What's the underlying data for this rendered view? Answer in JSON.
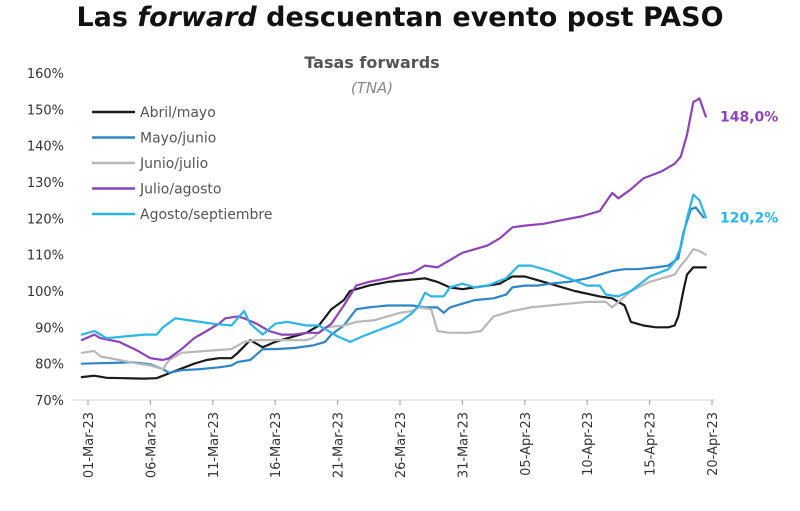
{
  "title": {
    "prefix": "Las",
    "italic": "forward",
    "suffix": "descuentan evento post PASO"
  },
  "chart_data": {
    "type": "line",
    "subtitle": "Tasas forwards",
    "unit_label": "(TNA)",
    "ylim": [
      70,
      160
    ],
    "y_ticks": [
      "70%",
      "80%",
      "90%",
      "100%",
      "110%",
      "120%",
      "130%",
      "140%",
      "150%",
      "160%"
    ],
    "y_tick_values": [
      70,
      80,
      90,
      100,
      110,
      120,
      130,
      140,
      150,
      160
    ],
    "x_ticks": [
      "01-Mar-23",
      "06-Mar-23",
      "11-Mar-23",
      "16-Mar-23",
      "21-Mar-23",
      "26-Mar-23",
      "31-Mar-23",
      "05-Apr-23",
      "10-Apr-23",
      "15-Apr-23",
      "20-Apr-23"
    ],
    "x_tick_days": [
      1,
      6,
      11,
      16,
      21,
      26,
      31,
      36,
      41,
      46,
      51
    ],
    "xlim": [
      1,
      51
    ],
    "grid": false,
    "legend_position": "top-left",
    "series": [
      {
        "name": "Abril/mayo",
        "color": "#1a1a1a",
        "points": [
          [
            0.5,
            76.3
          ],
          [
            1.5,
            76.7
          ],
          [
            2.5,
            76.1
          ],
          [
            4,
            76
          ],
          [
            5.5,
            75.9
          ],
          [
            6.5,
            76
          ],
          [
            8,
            78
          ],
          [
            9.5,
            80
          ],
          [
            10.5,
            81
          ],
          [
            11.5,
            81.5
          ],
          [
            12.5,
            81.5
          ],
          [
            13,
            83
          ],
          [
            14,
            86.5
          ],
          [
            15,
            84.5
          ],
          [
            16,
            86
          ],
          [
            17,
            87
          ],
          [
            18.5,
            88.5
          ],
          [
            19.5,
            90.5
          ],
          [
            20.5,
            95
          ],
          [
            21.5,
            97.5
          ],
          [
            22,
            100
          ],
          [
            23.5,
            101.5
          ],
          [
            25,
            102.5
          ],
          [
            26.5,
            103
          ],
          [
            28,
            103.5
          ],
          [
            29,
            102.5
          ],
          [
            30,
            101
          ],
          [
            31,
            100.5
          ],
          [
            32,
            101
          ],
          [
            33,
            101.5
          ],
          [
            34,
            102
          ],
          [
            35,
            104
          ],
          [
            36,
            104
          ],
          [
            37,
            103
          ],
          [
            38,
            102
          ],
          [
            40,
            100
          ],
          [
            42,
            98.5
          ],
          [
            43,
            98
          ],
          [
            44,
            96
          ],
          [
            44.5,
            91.5
          ],
          [
            45.5,
            90.5
          ],
          [
            46.5,
            90
          ],
          [
            47.5,
            90
          ],
          [
            48,
            90.5
          ],
          [
            48.3,
            93
          ],
          [
            48.7,
            100
          ],
          [
            49,
            104.5
          ],
          [
            49.5,
            106.5
          ],
          [
            50.5,
            106.5
          ]
        ]
      },
      {
        "name": "Mayo/junio",
        "color": "#2e86c8",
        "points": [
          [
            0.5,
            80
          ],
          [
            1.5,
            80.1
          ],
          [
            3,
            80.2
          ],
          [
            4.5,
            80.4
          ],
          [
            6,
            79.8
          ],
          [
            7,
            78.5
          ],
          [
            7.5,
            77.5
          ],
          [
            8.5,
            78.2
          ],
          [
            10,
            78.5
          ],
          [
            11.5,
            79
          ],
          [
            12.5,
            79.5
          ],
          [
            13,
            80.5
          ],
          [
            14,
            81
          ],
          [
            15,
            84
          ],
          [
            16,
            84
          ],
          [
            17.5,
            84.3
          ],
          [
            19,
            85
          ],
          [
            20,
            86
          ],
          [
            20.5,
            88
          ],
          [
            21.5,
            90.5
          ],
          [
            22.5,
            95
          ],
          [
            23.5,
            95.5
          ],
          [
            25,
            96
          ],
          [
            26,
            96
          ],
          [
            27,
            96
          ],
          [
            28,
            95.5
          ],
          [
            29,
            95.5
          ],
          [
            29.5,
            94
          ],
          [
            30,
            95.5
          ],
          [
            31,
            96.5
          ],
          [
            32,
            97.5
          ],
          [
            33.5,
            98
          ],
          [
            34.5,
            99
          ],
          [
            35,
            101
          ],
          [
            36,
            101.5
          ],
          [
            37,
            101.5
          ],
          [
            38,
            102
          ],
          [
            39.5,
            102.5
          ],
          [
            41,
            103.5
          ],
          [
            42,
            104.5
          ],
          [
            43,
            105.5
          ],
          [
            44,
            106
          ],
          [
            45,
            106
          ],
          [
            46.5,
            106.5
          ],
          [
            47.5,
            107
          ],
          [
            48.3,
            109
          ],
          [
            48.7,
            116
          ],
          [
            49.3,
            122.5
          ],
          [
            49.7,
            123
          ],
          [
            50.3,
            120.3
          ]
        ]
      },
      {
        "name": "Junio/julio",
        "color": "#b8b8b8",
        "points": [
          [
            0.5,
            83
          ],
          [
            1.5,
            83.5
          ],
          [
            2,
            82
          ],
          [
            3.5,
            81
          ],
          [
            5,
            80
          ],
          [
            6,
            79.5
          ],
          [
            6.5,
            79
          ],
          [
            7,
            78.5
          ],
          [
            7.5,
            81
          ],
          [
            8.5,
            83
          ],
          [
            10.5,
            83.5
          ],
          [
            12.5,
            84
          ],
          [
            13.5,
            86
          ],
          [
            14.5,
            86.5
          ],
          [
            15.5,
            86.5
          ],
          [
            16.5,
            86.5
          ],
          [
            17.5,
            86.5
          ],
          [
            18.5,
            86.5
          ],
          [
            19,
            87
          ],
          [
            20,
            90
          ],
          [
            21.5,
            90.5
          ],
          [
            22.5,
            91.5
          ],
          [
            24,
            92
          ],
          [
            25,
            93
          ],
          [
            26,
            94
          ],
          [
            27,
            94.5
          ],
          [
            27.5,
            95.5
          ],
          [
            28.5,
            95
          ],
          [
            29,
            89
          ],
          [
            30,
            88.5
          ],
          [
            31.5,
            88.5
          ],
          [
            32.5,
            89
          ],
          [
            33.5,
            93
          ],
          [
            35,
            94.5
          ],
          [
            36.5,
            95.5
          ],
          [
            38,
            96
          ],
          [
            39.5,
            96.5
          ],
          [
            41,
            97
          ],
          [
            42.5,
            97
          ],
          [
            43,
            95.5
          ],
          [
            43.5,
            97
          ],
          [
            44.5,
            100
          ],
          [
            46,
            102.5
          ],
          [
            47,
            103.5
          ],
          [
            48,
            104.5
          ],
          [
            48.5,
            107
          ],
          [
            49,
            109
          ],
          [
            49.5,
            111.5
          ],
          [
            50,
            111
          ],
          [
            50.5,
            110
          ]
        ]
      },
      {
        "name": "Julio/agosto",
        "color": "#8e44b8",
        "points": [
          [
            0.5,
            86.5
          ],
          [
            1.5,
            88
          ],
          [
            2,
            87
          ],
          [
            3.5,
            86
          ],
          [
            5,
            83.5
          ],
          [
            6,
            81.5
          ],
          [
            7,
            81
          ],
          [
            7.5,
            81.5
          ],
          [
            8.5,
            84
          ],
          [
            9.5,
            87
          ],
          [
            10.5,
            89
          ],
          [
            11.5,
            91
          ],
          [
            12,
            92.5
          ],
          [
            13,
            93
          ],
          [
            13.5,
            92.5
          ],
          [
            14.5,
            91
          ],
          [
            15.5,
            89
          ],
          [
            16.5,
            88
          ],
          [
            17.5,
            88
          ],
          [
            18.5,
            88.5
          ],
          [
            19.5,
            88.5
          ],
          [
            20.5,
            91
          ],
          [
            21.5,
            96
          ],
          [
            22.5,
            101.5
          ],
          [
            23.5,
            102.5
          ],
          [
            25,
            103.5
          ],
          [
            26,
            104.5
          ],
          [
            27,
            105
          ],
          [
            28,
            107
          ],
          [
            29,
            106.5
          ],
          [
            30,
            108.5
          ],
          [
            31,
            110.5
          ],
          [
            32,
            111.5
          ],
          [
            33,
            112.5
          ],
          [
            34,
            114.5
          ],
          [
            35,
            117.5
          ],
          [
            36,
            118
          ],
          [
            37.5,
            118.5
          ],
          [
            39,
            119.5
          ],
          [
            40.5,
            120.5
          ],
          [
            42,
            122
          ],
          [
            43,
            127
          ],
          [
            43.5,
            125.5
          ],
          [
            44.5,
            128
          ],
          [
            45.5,
            131
          ],
          [
            47,
            133
          ],
          [
            48,
            135
          ],
          [
            48.5,
            137
          ],
          [
            49,
            143
          ],
          [
            49.5,
            152
          ],
          [
            50,
            153
          ],
          [
            50.5,
            148
          ]
        ]
      },
      {
        "name": "Agosto/septiembre",
        "color": "#2bb6e8",
        "points": [
          [
            0.5,
            88
          ],
          [
            1.5,
            89
          ],
          [
            2.5,
            87
          ],
          [
            4,
            87.5
          ],
          [
            5.5,
            88
          ],
          [
            6.5,
            88
          ],
          [
            7,
            90
          ],
          [
            8,
            92.5
          ],
          [
            9,
            92
          ],
          [
            10,
            91.5
          ],
          [
            11,
            91
          ],
          [
            12.5,
            90.5
          ],
          [
            13.5,
            94.5
          ],
          [
            14,
            91
          ],
          [
            15,
            88
          ],
          [
            16,
            91
          ],
          [
            17,
            91.5
          ],
          [
            18.5,
            90.5
          ],
          [
            19.5,
            90.5
          ],
          [
            20,
            89.5
          ],
          [
            21,
            87.5
          ],
          [
            22,
            86
          ],
          [
            23,
            87.5
          ],
          [
            24.5,
            89.5
          ],
          [
            26,
            91.5
          ],
          [
            27,
            94
          ],
          [
            27.5,
            96
          ],
          [
            28,
            99.5
          ],
          [
            28.5,
            98.5
          ],
          [
            29.5,
            98.5
          ],
          [
            30,
            101
          ],
          [
            31,
            102
          ],
          [
            32,
            101
          ],
          [
            33,
            101.5
          ],
          [
            34.5,
            103.5
          ],
          [
            35.5,
            107
          ],
          [
            36.5,
            107
          ],
          [
            38,
            105.5
          ],
          [
            39.5,
            103.5
          ],
          [
            41,
            101.5
          ],
          [
            42,
            101.5
          ],
          [
            42.5,
            99
          ],
          [
            43.5,
            98.5
          ],
          [
            44.5,
            100
          ],
          [
            46,
            104
          ],
          [
            47.5,
            106
          ],
          [
            48,
            108
          ],
          [
            48.5,
            112
          ],
          [
            49,
            120
          ],
          [
            49.5,
            126.5
          ],
          [
            50,
            125
          ],
          [
            50.5,
            120.2
          ]
        ]
      }
    ],
    "end_labels": [
      {
        "text": "148,0%",
        "value": 148,
        "color": "#8e44b8"
      },
      {
        "text": "120,2%",
        "value": 120.2,
        "color": "#2bb6e8"
      }
    ]
  }
}
